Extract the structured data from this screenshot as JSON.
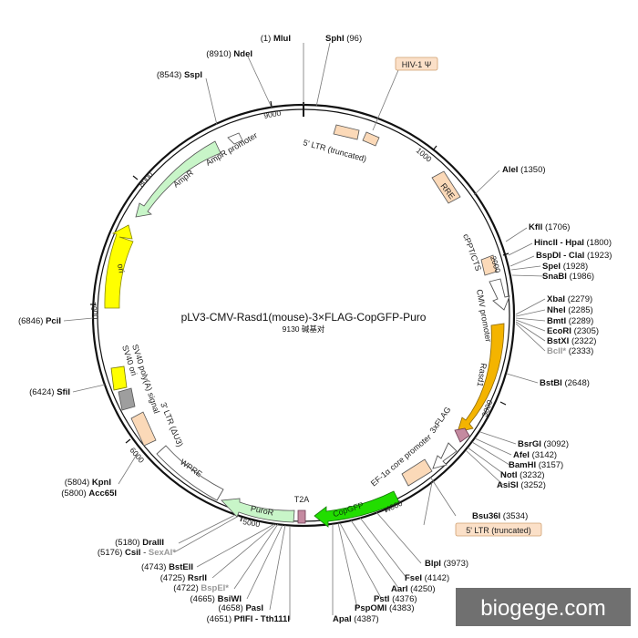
{
  "title": "pLV3-CMV-Rasd1(mouse)-3×FLAG-CopGFP-Puro",
  "subtitle": "9130 碱基对",
  "watermark": "biogege.com",
  "ticks": [
    "1000",
    "2000",
    "3000",
    "4000",
    "5000",
    "6000",
    "7000",
    "8000",
    "9000"
  ],
  "features": {
    "hiv1_psi": "HIV-1 Ψ",
    "ltr5_trunc": "5' LTR (truncated)",
    "rre": "RRE",
    "cppt": "cPPT/CTS",
    "cmv": "CMV promoter",
    "rasd1": "Rasd1",
    "flag": "3xFLAG",
    "ef1a": "EF-1α core promoter",
    "ltr5_trunc_box": "5' LTR (truncated)",
    "copgfp": "CopGFP",
    "t2a": "T2A",
    "puror": "PuroR",
    "wpre": "WPRE",
    "ltr3": "3' LTR (ΔU3)",
    "sv40pa": "SV40 poly(A) signal",
    "sv40ori": "SV40 ori",
    "ori": "ori",
    "ampr": "AmpR",
    "ampr_prom": "AmpR promoter"
  },
  "enzymes": {
    "mlui": {
      "name": "MluI",
      "pos": "(1)"
    },
    "sphi": {
      "name": "SphI",
      "pos": "(96)"
    },
    "ndei": {
      "name": "NdeI",
      "pos": "(8910)"
    },
    "sspi": {
      "name": "SspI",
      "pos": "(8543)"
    },
    "alei": {
      "name": "AleI",
      "pos": "(1350)"
    },
    "kfli": {
      "name": "KflI",
      "pos": "(1706)"
    },
    "hinc": {
      "name": "HincII - HpaI",
      "pos": "(1800)"
    },
    "bspdi": {
      "name": "BspDI - ClaI",
      "pos": "(1923)"
    },
    "spei": {
      "name": "SpeI",
      "pos": "(1928)"
    },
    "snabi": {
      "name": "SnaBI",
      "pos": "(1986)"
    },
    "xbai": {
      "name": "XbaI",
      "pos": "(2279)"
    },
    "nhei": {
      "name": "NheI",
      "pos": "(2285)"
    },
    "bmti": {
      "name": "BmtI",
      "pos": "(2289)"
    },
    "ecori": {
      "name": "EcoRI",
      "pos": "(2305)"
    },
    "bstxi": {
      "name": "BstXI",
      "pos": "(2322)"
    },
    "bcli": {
      "name": "BclI*",
      "pos": "(2333)"
    },
    "bstbi": {
      "name": "BstBI",
      "pos": "(2648)"
    },
    "bsrgi": {
      "name": "BsrGI",
      "pos": "(3092)"
    },
    "afei": {
      "name": "AfeI",
      "pos": "(3142)"
    },
    "bamhi": {
      "name": "BamHI",
      "pos": "(3157)"
    },
    "noti": {
      "name": "NotI",
      "pos": "(3232)"
    },
    "asisi": {
      "name": "AsiSI",
      "pos": "(3252)"
    },
    "bsu36i": {
      "name": "Bsu36I",
      "pos": "(3534)"
    },
    "blpi": {
      "name": "BlpI",
      "pos": "(3973)"
    },
    "fsei": {
      "name": "FseI",
      "pos": "(4142)"
    },
    "aari": {
      "name": "AarI",
      "pos": "(4250)"
    },
    "psti": {
      "name": "PstI",
      "pos": "(4376)"
    },
    "pspomi": {
      "name": "PspOMI",
      "pos": "(4383)"
    },
    "apai": {
      "name": "ApaI",
      "pos": "(4387)"
    },
    "pflfi": {
      "name": "PflFI - Tth111I",
      "pos": "(4651)"
    },
    "pasi": {
      "name": "PasI",
      "pos": "(4658)"
    },
    "bsiwi": {
      "name": "BsiWI",
      "pos": "(4665)"
    },
    "bspei": {
      "name": "BspEI*",
      "pos": "(4722)"
    },
    "rsrii": {
      "name": "RsrII",
      "pos": "(4725)"
    },
    "bsteii": {
      "name": "BstEII",
      "pos": "(4743)"
    },
    "csii": {
      "name": "CsiI",
      "pos": "(5176)"
    },
    "sexai": {
      "name": "SexAI*",
      "pos": ""
    },
    "draiii": {
      "name": "DraIII",
      "pos": "(5180)"
    },
    "kpni": {
      "name": "KpnI",
      "pos": "(5804)"
    },
    "acc65i": {
      "name": "Acc65I",
      "pos": "(5800)"
    },
    "sfii": {
      "name": "SfiI",
      "pos": "(6424)"
    },
    "pcii": {
      "name": "PciI",
      "pos": "(6846)"
    }
  }
}
